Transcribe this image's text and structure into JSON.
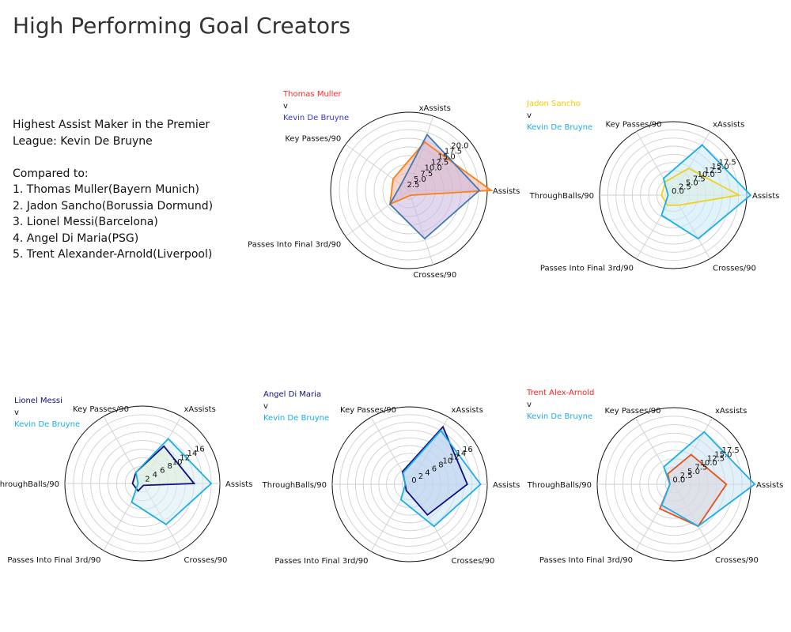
{
  "title": "High Performing Goal Creators",
  "description": {
    "line1": "Highest Assist Maker in the Premier",
    "line2": "League: Kevin De Bruyne",
    "compared_label": "Compared to:",
    "items": [
      "1. Thomas Muller(Bayern Munich)",
      "2. Jadon Sancho(Borussia Dormund)",
      "3. Lionel Messi(Barcelona)",
      "4. Angel Di Maria(PSG)",
      "5. Trent Alexander-Arnold(Liverpool)"
    ]
  },
  "chart_data": [
    {
      "type": "radar",
      "legend": {
        "player": "Thomas Muller",
        "vs": "v",
        "opponent": "Kevin De Bruyne"
      },
      "player_color": "#ff2a2a",
      "opponent_color": "#3333dd",
      "categories": [
        "Assists",
        "xAssists",
        "Key Passes/90",
        "Passes Into Final 3rd/90",
        "Crosses/90"
      ],
      "tick_labels": [
        "2.5",
        "5.0",
        "7.5",
        "10.0",
        "12.5",
        "15.0",
        "17.5",
        "20.0"
      ],
      "rmax": 20,
      "series": [
        {
          "name": "Thomas Muller",
          "color": "#ff7f0e",
          "fill": "#f2b0a0",
          "values": [
            21,
            13,
            5,
            6,
            1.3
          ]
        },
        {
          "name": "Kevin De Bruyne",
          "color": "#3f78b5",
          "fill": "#c8b8e4",
          "values": [
            18,
            15,
            2.5,
            6,
            13
          ]
        }
      ]
    },
    {
      "type": "radar",
      "legend": {
        "player": "Jadon Sancho",
        "vs": "v",
        "opponent": "Kevin De Bruyne"
      },
      "player_color": "#f2cc00",
      "opponent_color": "#1aaee8",
      "categories": [
        "Assists",
        "xAssists",
        "Key Passes/90",
        "ThroughBalls/90",
        "Passes Into Final 3rd/90",
        "Crosses/90"
      ],
      "tick_labels": [
        "0.0",
        "2.5",
        "5.0",
        "7.5",
        "10.0",
        "12.5",
        "15.0",
        "17.5"
      ],
      "rmax": 19,
      "series": [
        {
          "name": "Jadon Sancho",
          "color": "#f2d020",
          "fill": "#f4f2cc",
          "values": [
            17,
            8,
            4,
            3,
            3,
            3
          ]
        },
        {
          "name": "Kevin De Bruyne",
          "color": "#1aaee8",
          "fill": "#c6eaf6",
          "values": [
            20,
            15,
            5,
            1.3,
            6,
            13
          ]
        }
      ]
    },
    {
      "type": "radar",
      "legend": {
        "player": "Lionel Messi",
        "vs": "v",
        "opponent": "Kevin De Bruyne"
      },
      "player_color": "#101080",
      "opponent_color": "#1aaee8",
      "categories": [
        "Assists",
        "xAssists",
        "Key Passes/90",
        "ThroughBalls/90",
        "Passes Into Final 3rd/90",
        "Crosses/90"
      ],
      "tick_labels": [
        "2",
        "4",
        "6",
        "8",
        "10",
        "12",
        "14",
        "16"
      ],
      "rmax": 18,
      "series": [
        {
          "name": "Lionel Messi",
          "color": "#101080",
          "fill": "#e2f0c0",
          "values": [
            12,
            10,
            3,
            2.3,
            2,
            0.5
          ]
        },
        {
          "name": "Kevin De Bruyne",
          "color": "#1aaee8",
          "fill": "#d8edf4",
          "values": [
            16,
            12,
            3,
            1,
            5,
            11
          ]
        }
      ]
    },
    {
      "type": "radar",
      "legend": {
        "player": "Angel Di Maria",
        "vs": "v",
        "opponent": "Kevin De Bruyne"
      },
      "player_color": "#101080",
      "opponent_color": "#1aaee8",
      "categories": [
        "Assists",
        "xAssists",
        "Key Passes/90",
        "ThroughBalls/90",
        "Passes Into Final 3rd/90",
        "Crosses/90"
      ],
      "tick_labels": [
        "0",
        "2",
        "4",
        "6",
        "8",
        "10",
        "12",
        "14",
        "16"
      ],
      "rmax": 17.5,
      "series": [
        {
          "name": "Angel Di Maria",
          "color": "#101080",
          "fill": "#a8b2e4",
          "values": [
            13,
            15,
            3.3,
            1,
            1.6,
            8
          ]
        },
        {
          "name": "Kevin De Bruyne",
          "color": "#1aaee8",
          "fill": "#c8e4f4",
          "values": [
            16,
            14,
            3,
            1,
            4,
            11
          ]
        }
      ]
    },
    {
      "type": "radar",
      "legend": {
        "player": "Trent Alex-Arnold",
        "vs": "v",
        "opponent": "Kevin De Bruyne"
      },
      "player_color": "#ee2222",
      "opponent_color": "#1aaee8",
      "categories": [
        "Assists",
        "xAssists",
        "Key Passes/90",
        "ThroughBalls/90",
        "Passes Into Final 3rd/90",
        "Crosses/90"
      ],
      "tick_labels": [
        "0.0",
        "2.5",
        "5.0",
        "7.5",
        "10.0",
        "12.5",
        "15.0",
        "17.5"
      ],
      "rmax": 19,
      "series": [
        {
          "name": "Trent Alex-Arnold",
          "color": "#e8501e",
          "fill": "#f4c4bc",
          "values": [
            13,
            8.5,
            3,
            1,
            7,
            12
          ]
        },
        {
          "name": "Kevin De Bruyne",
          "color": "#1aaee8",
          "fill": "#c8e4f4",
          "values": [
            20,
            15,
            5,
            1,
            6,
            12
          ]
        }
      ]
    }
  ]
}
